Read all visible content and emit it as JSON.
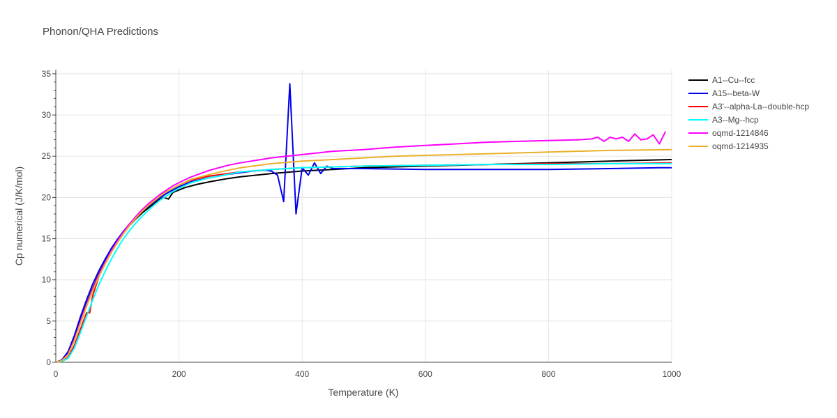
{
  "chart_data": {
    "type": "line",
    "title": "Phonon/QHA Predictions",
    "xlabel": "Temperature (K)",
    "ylabel": "Cp numerical (J/K/mol)",
    "xlim": [
      0,
      1000
    ],
    "ylim": [
      0,
      35.5
    ],
    "x_ticks": [
      0,
      200,
      400,
      600,
      800,
      1000
    ],
    "y_ticks": [
      0,
      5,
      10,
      15,
      20,
      25,
      30,
      35
    ],
    "grid": true,
    "legend_position": "top-right",
    "series": [
      {
        "name": "A1--Cu--fcc",
        "color": "#000000",
        "points": [
          [
            0,
            0
          ],
          [
            10,
            0.2
          ],
          [
            20,
            1.1
          ],
          [
            30,
            2.9
          ],
          [
            40,
            5.0
          ],
          [
            50,
            7.1
          ],
          [
            60,
            9.0
          ],
          [
            70,
            10.7
          ],
          [
            80,
            12.2
          ],
          [
            90,
            13.5
          ],
          [
            100,
            14.7
          ],
          [
            110,
            15.7
          ],
          [
            120,
            16.6
          ],
          [
            130,
            17.4
          ],
          [
            140,
            18.1
          ],
          [
            150,
            18.7
          ],
          [
            160,
            19.3
          ],
          [
            170,
            19.8
          ],
          [
            175,
            20.0
          ],
          [
            183,
            19.8
          ],
          [
            190,
            20.6
          ],
          [
            200,
            20.9
          ],
          [
            210,
            21.2
          ],
          [
            230,
            21.6
          ],
          [
            250,
            21.9
          ],
          [
            280,
            22.3
          ],
          [
            300,
            22.5
          ],
          [
            350,
            22.9
          ],
          [
            400,
            23.2
          ],
          [
            450,
            23.4
          ],
          [
            500,
            23.6
          ],
          [
            600,
            23.8
          ],
          [
            700,
            24.0
          ],
          [
            800,
            24.2
          ],
          [
            900,
            24.4
          ],
          [
            1000,
            24.6
          ]
        ]
      },
      {
        "name": "A15--beta-W",
        "color": "#0000ee",
        "points": [
          [
            0,
            0
          ],
          [
            10,
            0.3
          ],
          [
            20,
            1.3
          ],
          [
            30,
            3.2
          ],
          [
            40,
            5.5
          ],
          [
            50,
            7.6
          ],
          [
            60,
            9.5
          ],
          [
            70,
            11.1
          ],
          [
            80,
            12.5
          ],
          [
            90,
            13.8
          ],
          [
            100,
            14.9
          ],
          [
            110,
            15.9
          ],
          [
            120,
            16.8
          ],
          [
            130,
            17.6
          ],
          [
            140,
            18.3
          ],
          [
            150,
            18.9
          ],
          [
            160,
            19.5
          ],
          [
            170,
            20.0
          ],
          [
            180,
            20.5
          ],
          [
            190,
            20.9
          ],
          [
            200,
            21.3
          ],
          [
            220,
            21.9
          ],
          [
            250,
            22.4
          ],
          [
            280,
            22.8
          ],
          [
            300,
            23.0
          ],
          [
            320,
            23.2
          ],
          [
            340,
            23.3
          ],
          [
            350,
            23.2
          ],
          [
            360,
            22.7
          ],
          [
            370,
            19.5
          ],
          [
            380,
            33.8
          ],
          [
            390,
            18.0
          ],
          [
            400,
            23.6
          ],
          [
            410,
            22.7
          ],
          [
            420,
            24.2
          ],
          [
            430,
            22.9
          ],
          [
            440,
            23.8
          ],
          [
            450,
            23.5
          ],
          [
            480,
            23.5
          ],
          [
            500,
            23.5
          ],
          [
            600,
            23.4
          ],
          [
            700,
            23.4
          ],
          [
            800,
            23.4
          ],
          [
            900,
            23.5
          ],
          [
            980,
            23.6
          ],
          [
            1000,
            23.6
          ]
        ]
      },
      {
        "name": "A3'--alpha-La--double-hcp",
        "color": "#ff0000",
        "points": [
          [
            0,
            0
          ],
          [
            10,
            0.1
          ],
          [
            20,
            0.6
          ],
          [
            30,
            2.0
          ],
          [
            40,
            4.0
          ],
          [
            50,
            6.0
          ],
          [
            55,
            6.0
          ],
          [
            60,
            8.1
          ],
          [
            70,
            10.4
          ],
          [
            80,
            12.0
          ],
          [
            90,
            13.4
          ],
          [
            100,
            14.6
          ],
          [
            110,
            15.7
          ],
          [
            120,
            16.7
          ],
          [
            130,
            17.5
          ],
          [
            140,
            18.3
          ],
          [
            150,
            19.0
          ],
          [
            160,
            19.6
          ],
          [
            170,
            20.2
          ],
          [
            180,
            20.7
          ],
          [
            190,
            21.1
          ],
          [
            200,
            21.5
          ],
          [
            220,
            22.1
          ],
          [
            250,
            22.6
          ],
          [
            280,
            22.9
          ],
          [
            300,
            23.1
          ],
          [
            350,
            23.4
          ],
          [
            400,
            23.6
          ],
          [
            500,
            23.8
          ],
          [
            600,
            23.9
          ],
          [
            700,
            24.0
          ],
          [
            800,
            24.1
          ],
          [
            900,
            24.1
          ],
          [
            1000,
            24.2
          ]
        ]
      },
      {
        "name": "A3--Mg--hcp",
        "color": "#00ffff",
        "points": [
          [
            0,
            0
          ],
          [
            10,
            0.1
          ],
          [
            20,
            0.5
          ],
          [
            30,
            1.7
          ],
          [
            40,
            3.6
          ],
          [
            50,
            5.6
          ],
          [
            60,
            7.6
          ],
          [
            70,
            9.4
          ],
          [
            80,
            11.0
          ],
          [
            90,
            12.5
          ],
          [
            100,
            13.8
          ],
          [
            110,
            15.0
          ],
          [
            120,
            16.0
          ],
          [
            130,
            16.9
          ],
          [
            140,
            17.7
          ],
          [
            150,
            18.4
          ],
          [
            160,
            19.1
          ],
          [
            170,
            19.7
          ],
          [
            180,
            20.2
          ],
          [
            190,
            20.7
          ],
          [
            200,
            21.1
          ],
          [
            220,
            21.8
          ],
          [
            250,
            22.4
          ],
          [
            280,
            22.8
          ],
          [
            300,
            23.1
          ],
          [
            350,
            23.4
          ],
          [
            400,
            23.6
          ],
          [
            500,
            23.8
          ],
          [
            600,
            23.9
          ],
          [
            700,
            24.0
          ],
          [
            800,
            24.0
          ],
          [
            900,
            24.1
          ],
          [
            1000,
            24.1
          ]
        ]
      },
      {
        "name": "oqmd-1214846",
        "color": "#ff00ff",
        "points": [
          [
            0,
            0
          ],
          [
            10,
            0.2
          ],
          [
            20,
            1.0
          ],
          [
            30,
            2.7
          ],
          [
            40,
            4.9
          ],
          [
            50,
            7.0
          ],
          [
            60,
            8.9
          ],
          [
            70,
            10.6
          ],
          [
            80,
            12.1
          ],
          [
            90,
            13.5
          ],
          [
            100,
            14.7
          ],
          [
            110,
            15.8
          ],
          [
            120,
            16.8
          ],
          [
            130,
            17.7
          ],
          [
            140,
            18.5
          ],
          [
            150,
            19.2
          ],
          [
            160,
            19.8
          ],
          [
            170,
            20.4
          ],
          [
            180,
            20.9
          ],
          [
            190,
            21.4
          ],
          [
            200,
            21.8
          ],
          [
            220,
            22.5
          ],
          [
            250,
            23.3
          ],
          [
            280,
            23.9
          ],
          [
            300,
            24.2
          ],
          [
            350,
            24.8
          ],
          [
            400,
            25.2
          ],
          [
            450,
            25.6
          ],
          [
            500,
            25.8
          ],
          [
            550,
            26.1
          ],
          [
            600,
            26.3
          ],
          [
            650,
            26.5
          ],
          [
            700,
            26.7
          ],
          [
            750,
            26.8
          ],
          [
            800,
            26.9
          ],
          [
            850,
            27.0
          ],
          [
            870,
            27.1
          ],
          [
            880,
            27.3
          ],
          [
            890,
            26.8
          ],
          [
            900,
            27.3
          ],
          [
            910,
            27.1
          ],
          [
            920,
            27.3
          ],
          [
            930,
            26.8
          ],
          [
            940,
            27.7
          ],
          [
            950,
            27.0
          ],
          [
            960,
            27.1
          ],
          [
            970,
            27.6
          ],
          [
            980,
            26.5
          ],
          [
            990,
            28.0
          ]
        ]
      },
      {
        "name": "oqmd-1214935",
        "color": "#eab02b",
        "points": [
          [
            0,
            0
          ],
          [
            10,
            0.2
          ],
          [
            20,
            0.9
          ],
          [
            30,
            2.6
          ],
          [
            40,
            4.7
          ],
          [
            50,
            6.8
          ],
          [
            60,
            8.7
          ],
          [
            70,
            10.4
          ],
          [
            80,
            11.9
          ],
          [
            90,
            13.3
          ],
          [
            100,
            14.5
          ],
          [
            110,
            15.6
          ],
          [
            120,
            16.6
          ],
          [
            130,
            17.5
          ],
          [
            140,
            18.3
          ],
          [
            150,
            19.0
          ],
          [
            160,
            19.6
          ],
          [
            170,
            20.2
          ],
          [
            180,
            20.7
          ],
          [
            190,
            21.1
          ],
          [
            200,
            21.5
          ],
          [
            220,
            22.2
          ],
          [
            250,
            22.8
          ],
          [
            280,
            23.3
          ],
          [
            300,
            23.6
          ],
          [
            350,
            24.1
          ],
          [
            400,
            24.4
          ],
          [
            450,
            24.6
          ],
          [
            500,
            24.8
          ],
          [
            550,
            25.0
          ],
          [
            600,
            25.1
          ],
          [
            700,
            25.3
          ],
          [
            800,
            25.5
          ],
          [
            900,
            25.7
          ],
          [
            1000,
            25.8
          ]
        ]
      }
    ]
  }
}
